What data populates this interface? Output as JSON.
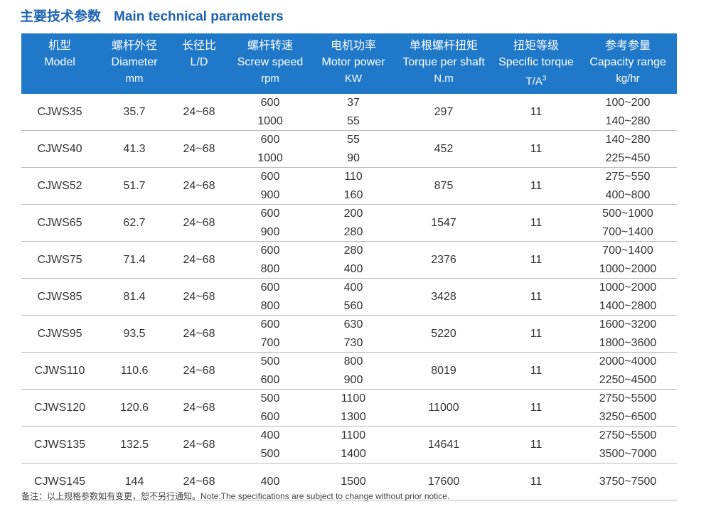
{
  "title": {
    "cn": "主要技术参数",
    "en": "Main technical parameters"
  },
  "columns": [
    {
      "cn": "机型",
      "en": "Model",
      "unit": ""
    },
    {
      "cn": "螺杆外径",
      "en": "Diameter",
      "unit": "mm"
    },
    {
      "cn": "长径比",
      "en": "L/D",
      "unit": ""
    },
    {
      "cn": "螺杆转速",
      "en": "Screw speed",
      "unit": "rpm"
    },
    {
      "cn": "电机功率",
      "en": "Motor power",
      "unit": "KW"
    },
    {
      "cn": "单根螺杆扭矩",
      "en": "Torque per shaft",
      "unit": "N.m"
    },
    {
      "cn": "扭矩等级",
      "en": "Specific torque",
      "unit": "T/A",
      "unit_sup": "3"
    },
    {
      "cn": "参考参量",
      "en": "Capacity range",
      "unit": "kg/hr"
    }
  ],
  "rows": [
    {
      "model": "CJWS35",
      "diameter": "35.7",
      "ld": "24~68",
      "speed": [
        "600",
        "1000"
      ],
      "power": [
        "37",
        "55"
      ],
      "torque": "297",
      "spec": "11",
      "capacity": [
        "100~200",
        "140~280"
      ]
    },
    {
      "model": "CJWS40",
      "diameter": "41.3",
      "ld": "24~68",
      "speed": [
        "600",
        "1000"
      ],
      "power": [
        "55",
        "90"
      ],
      "torque": "452",
      "spec": "11",
      "capacity": [
        "140~280",
        "225~450"
      ]
    },
    {
      "model": "CJWS52",
      "diameter": "51.7",
      "ld": "24~68",
      "speed": [
        "600",
        "900"
      ],
      "power": [
        "110",
        "160"
      ],
      "torque": "875",
      "spec": "11",
      "capacity": [
        "275~550",
        "400~800"
      ]
    },
    {
      "model": "CJWS65",
      "diameter": "62.7",
      "ld": "24~68",
      "speed": [
        "600",
        "900"
      ],
      "power": [
        "200",
        "280"
      ],
      "torque": "1547",
      "spec": "11",
      "capacity": [
        "500~1000",
        "700~1400"
      ]
    },
    {
      "model": "CJWS75",
      "diameter": "71.4",
      "ld": "24~68",
      "speed": [
        "600",
        "800"
      ],
      "power": [
        "280",
        "400"
      ],
      "torque": "2376",
      "spec": "11",
      "capacity": [
        "700~1400",
        "1000~2000"
      ]
    },
    {
      "model": "CJWS85",
      "diameter": "81.4",
      "ld": "24~68",
      "speed": [
        "600",
        "800"
      ],
      "power": [
        "400",
        "560"
      ],
      "torque": "3428",
      "spec": "11",
      "capacity": [
        "1000~2000",
        "1400~2800"
      ]
    },
    {
      "model": "CJWS95",
      "diameter": "93.5",
      "ld": "24~68",
      "speed": [
        "600",
        "700"
      ],
      "power": [
        "630",
        "730"
      ],
      "torque": "5220",
      "spec": "11",
      "capacity": [
        "1600~3200",
        "1800~3600"
      ]
    },
    {
      "model": "CJWS110",
      "diameter": "110.6",
      "ld": "24~68",
      "speed": [
        "500",
        "600"
      ],
      "power": [
        "800",
        "900"
      ],
      "torque": "8019",
      "spec": "11",
      "capacity": [
        "2000~4000",
        "2250~4500"
      ]
    },
    {
      "model": "CJWS120",
      "diameter": "120.6",
      "ld": "24~68",
      "speed": [
        "500",
        "600"
      ],
      "power": [
        "1100",
        "1300"
      ],
      "torque": "11000",
      "spec": "11",
      "capacity": [
        "2750~5500",
        "3250~6500"
      ]
    },
    {
      "model": "CJWS135",
      "diameter": "132.5",
      "ld": "24~68",
      "speed": [
        "400",
        "500"
      ],
      "power": [
        "1100",
        "1400"
      ],
      "torque": "14641",
      "spec": "11",
      "capacity": [
        "2750~5500",
        "3500~7000"
      ]
    },
    {
      "model": "CJWS145",
      "diameter": "144",
      "ld": "24~68",
      "speed": [
        "400"
      ],
      "power": [
        "1500"
      ],
      "torque": "17600",
      "spec": "11",
      "capacity": [
        "3750~7500"
      ]
    }
  ],
  "note": "备注：以上规格参数如有变更，恕不另行通知。Note:The specifications are subject to change without prior notice.",
  "colors": {
    "header_bg": "#1f78c8",
    "title": "#1f64b0",
    "rule": "#b9b9b9"
  }
}
